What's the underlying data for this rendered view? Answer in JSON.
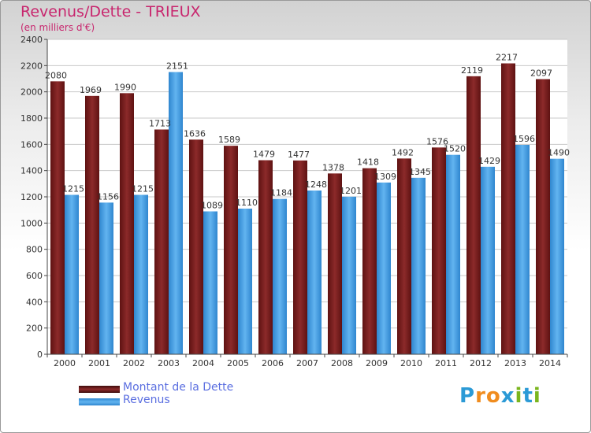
{
  "header": {
    "title": "Revenus/Dette - TRIEUX",
    "subtitle": "(en milliers d'€)"
  },
  "colors": {
    "dette": "#7a1c1c",
    "revenus": "#4aa3e8",
    "title": "#c8266e",
    "legend_text": "#5a6ee0"
  },
  "chart_data": {
    "type": "bar",
    "categories": [
      "2000",
      "2001",
      "2002",
      "2003",
      "2004",
      "2005",
      "2006",
      "2007",
      "2008",
      "2009",
      "2010",
      "2011",
      "2012",
      "2013",
      "2014"
    ],
    "series": [
      {
        "name": "Montant de la Dette",
        "values": [
          2080,
          1969,
          1990,
          1713,
          1636,
          1589,
          1479,
          1477,
          1378,
          1418,
          1492,
          1576,
          2119,
          2217,
          2097
        ]
      },
      {
        "name": "Revenus",
        "values": [
          1215,
          1156,
          1215,
          2151,
          1089,
          1110,
          1184,
          1248,
          1201,
          1309,
          1345,
          1520,
          1429,
          1596,
          1490
        ]
      }
    ],
    "ylim": [
      0,
      2400
    ],
    "yticks": [
      0,
      200,
      400,
      600,
      800,
      1000,
      1200,
      1400,
      1600,
      1800,
      2000,
      2200,
      2400
    ],
    "grid": true,
    "legend_position": "bottom-left"
  },
  "legend": {
    "items": [
      {
        "label": "Montant de la Dette",
        "color": "#7a1c1c"
      },
      {
        "label": "Revenus",
        "color": "#4aa3e8"
      }
    ]
  },
  "logo": {
    "letters": [
      "P",
      "r",
      "o",
      "x",
      "i",
      "t",
      "i"
    ],
    "colors": [
      "#2b9ad6",
      "#f08c1e",
      "#f08c1e",
      "#2b9ad6",
      "#7ab51d",
      "#2b9ad6",
      "#7ab51d"
    ]
  }
}
